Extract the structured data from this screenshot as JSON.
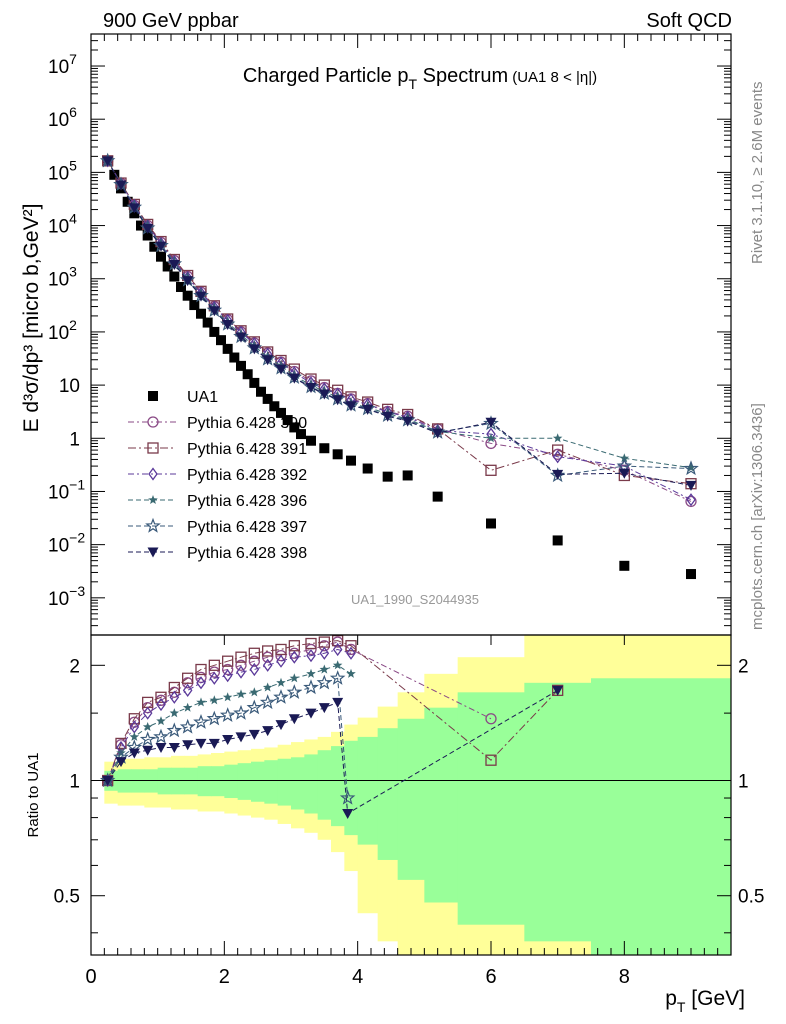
{
  "header": {
    "left": "900 GeV ppbar",
    "right": "Soft QCD"
  },
  "side_text": {
    "top": "Rivet 3.1.10, ≥ 2.6M events",
    "bottom": "mcplots.cern.ch [arXiv:1306.3436]"
  },
  "watermark": "UA1_1990_S2044935",
  "colors": {
    "ua1": "#000000",
    "p390": "#8a4a86",
    "p391": "#7a3a4a",
    "p392": "#5b3a9a",
    "p396": "#3a6a72",
    "p397": "#3a5a7a",
    "p398": "#1a1a55",
    "band_outer": "#ffff99",
    "band_inner": "#99ff99"
  },
  "chart_data": [
    {
      "type": "scatter",
      "title_main": "Charged Particle p",
      "title_sub": "T",
      "title_rest": " Spectrum",
      "title_note": "(UA1   8 < |η|)",
      "ylabel": "E d³σ/dp³ [micro b,GeV²]",
      "yscale": "log",
      "ylim": [
        0.0002,
        40000000
      ],
      "xlim": [
        0,
        9.6
      ],
      "yticks": [
        {
          "v": 10000000,
          "m": "10",
          "e": "7"
        },
        {
          "v": 1000000,
          "m": "10",
          "e": "6"
        },
        {
          "v": 100000,
          "m": "10",
          "e": "5"
        },
        {
          "v": 10000,
          "m": "10",
          "e": "4"
        },
        {
          "v": 1000,
          "m": "10",
          "e": "3"
        },
        {
          "v": 100,
          "m": "10",
          "e": "2"
        },
        {
          "v": 10,
          "m": "10",
          "e": ""
        },
        {
          "v": 1,
          "m": "1",
          "e": ""
        },
        {
          "v": 0.1,
          "m": "10",
          "e": "−1"
        },
        {
          "v": 0.01,
          "m": "10",
          "e": "−2"
        },
        {
          "v": 0.001,
          "m": "10",
          "e": "−3"
        }
      ],
      "legend": [
        {
          "key": "ua1",
          "label": "UA1",
          "marker": "square-filled",
          "dash": ""
        },
        {
          "key": "p390",
          "label": "Pythia 6.428 390",
          "marker": "circle",
          "dash": "6,3,2,3"
        },
        {
          "key": "p391",
          "label": "Pythia 6.428 391",
          "marker": "square-open",
          "dash": "8,3,2,3"
        },
        {
          "key": "p392",
          "label": "Pythia 6.428 392",
          "marker": "diamond",
          "dash": "6,3,2,3"
        },
        {
          "key": "p396",
          "label": "Pythia 6.428 396",
          "marker": "star-small",
          "dash": "5,3"
        },
        {
          "key": "p397",
          "label": "Pythia 6.428 397",
          "marker": "star-open",
          "dash": "5,3"
        },
        {
          "key": "p398",
          "label": "Pythia 6.428 398",
          "marker": "triangle-down",
          "dash": "5,3"
        }
      ],
      "series": [
        {
          "name": "UA1",
          "key": "ua1",
          "x": [
            0.25,
            0.35,
            0.45,
            0.55,
            0.65,
            0.75,
            0.85,
            0.95,
            1.05,
            1.15,
            1.25,
            1.35,
            1.45,
            1.55,
            1.65,
            1.75,
            1.85,
            1.95,
            2.05,
            2.15,
            2.25,
            2.35,
            2.45,
            2.55,
            2.65,
            2.75,
            2.85,
            2.95,
            3.05,
            3.15,
            3.3,
            3.5,
            3.7,
            3.9,
            4.15,
            4.45,
            4.75,
            5.2,
            6.0,
            7.0,
            8.0,
            9.0
          ],
          "y": [
            160000,
            90000,
            50000,
            28000,
            17000,
            10000,
            6500,
            4000,
            2600,
            1700,
            1100,
            700,
            480,
            320,
            220,
            150,
            100,
            70,
            48,
            33,
            23,
            16,
            11,
            7.5,
            5.5,
            4.0,
            3.0,
            2.2,
            1.6,
            1.2,
            0.9,
            0.65,
            0.5,
            0.38,
            0.27,
            0.19,
            0.2,
            0.08,
            0.025,
            0.012,
            0.004,
            0.0028
          ]
        },
        {
          "name": "Pythia 6.428 390",
          "key": "p390",
          "x": [
            0.25,
            0.45,
            0.65,
            0.85,
            1.05,
            1.25,
            1.45,
            1.65,
            1.85,
            2.05,
            2.25,
            2.45,
            2.65,
            2.85,
            3.05,
            3.3,
            3.5,
            3.7,
            3.9,
            4.15,
            4.45,
            4.75,
            5.2,
            6.0,
            7.0,
            8.0,
            9.0
          ],
          "y": [
            165000,
            62000,
            24000,
            10000,
            4800,
            2200,
            1100,
            560,
            300,
            170,
            100,
            62,
            40,
            27,
            18,
            12,
            9,
            7,
            5.5,
            4.5,
            3.2,
            2.6,
            1.5,
            0.8,
            0.5,
            0.25,
            0.065
          ]
        },
        {
          "name": "Pythia 6.428 391",
          "key": "p391",
          "x": [
            0.25,
            0.45,
            0.65,
            0.85,
            1.05,
            1.25,
            1.45,
            1.65,
            1.85,
            2.05,
            2.25,
            2.45,
            2.65,
            2.85,
            3.05,
            3.3,
            3.5,
            3.7,
            3.9,
            4.15,
            4.45,
            4.75,
            5.2,
            6.0,
            7.0,
            8.0,
            9.0
          ],
          "y": [
            165000,
            63000,
            25000,
            10500,
            5000,
            2300,
            1150,
            580,
            310,
            175,
            105,
            65,
            42,
            29,
            20,
            13,
            10,
            8,
            6,
            4.8,
            3.5,
            2.8,
            1.5,
            0.25,
            0.6,
            0.2,
            0.14
          ]
        },
        {
          "name": "Pythia 6.428 392",
          "key": "p392",
          "x": [
            0.25,
            0.45,
            0.65,
            0.85,
            1.05,
            1.25,
            1.45,
            1.65,
            1.85,
            2.05,
            2.25,
            2.45,
            2.65,
            2.85,
            3.05,
            3.3,
            3.5,
            3.7,
            3.9,
            4.15,
            4.45,
            4.75,
            5.2,
            6.0,
            7.0,
            8.0,
            9.0
          ],
          "y": [
            165000,
            61000,
            24000,
            9800,
            4600,
            2100,
            1050,
            540,
            290,
            165,
            98,
            60,
            38,
            26,
            17,
            11,
            8.5,
            6.8,
            5.3,
            4.3,
            3.1,
            2.5,
            1.4,
            1.2,
            0.45,
            0.3,
            0.07
          ]
        },
        {
          "name": "Pythia 6.428 396",
          "key": "p396",
          "x": [
            0.25,
            0.45,
            0.65,
            0.85,
            1.05,
            1.25,
            1.45,
            1.65,
            1.85,
            2.05,
            2.25,
            2.45,
            2.65,
            2.85,
            3.05,
            3.3,
            3.5,
            3.7,
            3.9,
            4.15,
            4.45,
            4.75,
            5.2,
            6.0,
            7.0,
            8.0,
            9.0
          ],
          "y": [
            165000,
            60000,
            23000,
            9400,
            4400,
            2000,
            1000,
            500,
            270,
            150,
            88,
            54,
            34,
            23,
            15,
            10,
            7.5,
            6,
            4.5,
            3.8,
            2.9,
            2.3,
            1.35,
            1.0,
            1.0,
            0.42,
            0.28
          ]
        },
        {
          "name": "Pythia 6.428 397",
          "key": "p397",
          "x": [
            0.25,
            0.45,
            0.65,
            0.85,
            1.05,
            1.25,
            1.45,
            1.65,
            1.85,
            2.05,
            2.25,
            2.45,
            2.65,
            2.85,
            3.05,
            3.3,
            3.5,
            3.7,
            3.9,
            4.15,
            4.45,
            4.75,
            5.2,
            6.0,
            7.0,
            8.0,
            9.0
          ],
          "y": [
            165000,
            59000,
            22000,
            9000,
            4200,
            1900,
            950,
            480,
            255,
            140,
            82,
            50,
            31,
            21,
            14,
            9.3,
            7,
            5.5,
            4.2,
            3.6,
            2.7,
            2.2,
            1.3,
            1.9,
            0.2,
            0.3,
            0.27
          ]
        },
        {
          "name": "Pythia 6.428 398",
          "key": "p398",
          "x": [
            0.25,
            0.45,
            0.65,
            0.85,
            1.05,
            1.25,
            1.45,
            1.65,
            1.85,
            2.05,
            2.25,
            2.45,
            2.65,
            2.85,
            3.05,
            3.3,
            3.5,
            3.7,
            3.9,
            4.15,
            4.45,
            4.75,
            5.2,
            6.0,
            7.0,
            8.0,
            9.0
          ],
          "y": [
            165000,
            58000,
            21500,
            8800,
            4100,
            1850,
            920,
            470,
            250,
            138,
            80,
            48,
            30,
            20,
            13.5,
            9,
            6.8,
            5.3,
            4.1,
            3.5,
            2.6,
            2.1,
            1.25,
            2.0,
            0.21,
            0.22,
            0.13
          ]
        }
      ]
    },
    {
      "type": "scatter",
      "ylabel": "Ratio to UA1",
      "xlabel_main": "p",
      "xlabel_sub": "T",
      "xlabel_rest": " [GeV]",
      "yscale": "log",
      "ylim": [
        0.35,
        2.4
      ],
      "xlim": [
        0,
        9.6
      ],
      "yticks": [
        {
          "v": 0.5,
          "t": "0.5"
        },
        {
          "v": 1,
          "t": "1"
        },
        {
          "v": 2,
          "t": "2"
        }
      ],
      "xticks": [
        {
          "v": 0,
          "t": "0"
        },
        {
          "v": 2,
          "t": "2"
        },
        {
          "v": 4,
          "t": "4"
        },
        {
          "v": 6,
          "t": "6"
        },
        {
          "v": 8,
          "t": "8"
        }
      ],
      "bands": {
        "edges": [
          0.2,
          0.4,
          0.6,
          0.8,
          1.0,
          1.2,
          1.4,
          1.6,
          1.8,
          2.0,
          2.2,
          2.4,
          2.6,
          2.8,
          3.0,
          3.2,
          3.4,
          3.6,
          3.8,
          4.0,
          4.3,
          4.6,
          5.0,
          5.5,
          6.5,
          7.5,
          9.6
        ],
        "outer_hi": [
          1.12,
          1.14,
          1.14,
          1.15,
          1.15,
          1.16,
          1.16,
          1.17,
          1.18,
          1.19,
          1.2,
          1.21,
          1.22,
          1.24,
          1.26,
          1.28,
          1.3,
          1.34,
          1.4,
          1.46,
          1.56,
          1.7,
          1.9,
          2.1,
          2.4,
          2.4
        ],
        "outer_lo": [
          0.87,
          0.86,
          0.86,
          0.85,
          0.85,
          0.84,
          0.84,
          0.83,
          0.83,
          0.82,
          0.81,
          0.8,
          0.79,
          0.77,
          0.75,
          0.73,
          0.7,
          0.65,
          0.58,
          0.45,
          0.38,
          0.35,
          0.35,
          0.35,
          0.35,
          0.35
        ],
        "inner_hi": [
          1.06,
          1.07,
          1.07,
          1.07,
          1.08,
          1.08,
          1.08,
          1.09,
          1.09,
          1.1,
          1.11,
          1.12,
          1.13,
          1.14,
          1.15,
          1.17,
          1.2,
          1.23,
          1.27,
          1.3,
          1.37,
          1.45,
          1.55,
          1.7,
          1.8,
          1.85
        ],
        "inner_lo": [
          0.94,
          0.93,
          0.93,
          0.93,
          0.92,
          0.92,
          0.92,
          0.91,
          0.91,
          0.9,
          0.89,
          0.88,
          0.87,
          0.86,
          0.84,
          0.82,
          0.79,
          0.76,
          0.72,
          0.68,
          0.62,
          0.55,
          0.48,
          0.42,
          0.38,
          0.35
        ]
      },
      "series": [
        {
          "name": "Pythia 6.428 390",
          "key": "p390",
          "x": [
            0.25,
            0.45,
            0.65,
            0.85,
            1.05,
            1.25,
            1.45,
            1.65,
            1.85,
            2.05,
            2.25,
            2.45,
            2.65,
            2.85,
            3.05,
            3.3,
            3.5,
            3.7,
            3.9,
            6.0
          ],
          "y": [
            1.0,
            1.24,
            1.42,
            1.55,
            1.62,
            1.7,
            1.8,
            1.86,
            1.92,
            1.95,
            2.0,
            2.05,
            2.1,
            2.12,
            2.15,
            2.2,
            2.25,
            2.3,
            2.2,
            1.45
          ]
        },
        {
          "name": "Pythia 6.428 391",
          "key": "p391",
          "x": [
            0.25,
            0.45,
            0.65,
            0.85,
            1.05,
            1.25,
            1.45,
            1.65,
            1.85,
            2.05,
            2.25,
            2.45,
            2.65,
            2.85,
            3.05,
            3.3,
            3.5,
            3.7,
            3.9,
            6.0,
            7.0
          ],
          "y": [
            1.0,
            1.25,
            1.45,
            1.6,
            1.65,
            1.75,
            1.85,
            1.95,
            2.0,
            2.05,
            2.1,
            2.15,
            2.18,
            2.2,
            2.25,
            2.28,
            2.3,
            2.32,
            2.25,
            1.13,
            1.72
          ]
        },
        {
          "name": "Pythia 6.428 392",
          "key": "p392",
          "x": [
            0.25,
            0.45,
            0.65,
            0.85,
            1.05,
            1.25,
            1.45,
            1.65,
            1.85,
            2.05,
            2.25,
            2.45,
            2.65,
            2.85,
            3.05,
            3.3,
            3.5,
            3.7,
            3.9
          ],
          "y": [
            1.0,
            1.22,
            1.38,
            1.5,
            1.58,
            1.65,
            1.72,
            1.8,
            1.85,
            1.88,
            1.92,
            1.95,
            2.0,
            2.05,
            2.1,
            2.12,
            2.15,
            2.2,
            2.15
          ]
        },
        {
          "name": "Pythia 6.428 396",
          "key": "p396",
          "x": [
            0.25,
            0.45,
            0.65,
            0.85,
            1.05,
            1.25,
            1.45,
            1.65,
            1.85,
            2.05,
            2.25,
            2.45,
            2.65,
            2.85,
            3.05,
            3.3,
            3.5,
            3.7,
            3.9
          ],
          "y": [
            1.0,
            1.18,
            1.3,
            1.38,
            1.43,
            1.5,
            1.55,
            1.6,
            1.62,
            1.65,
            1.68,
            1.7,
            1.75,
            1.8,
            1.85,
            1.9,
            1.95,
            2.0,
            1.9
          ]
        },
        {
          "name": "Pythia 6.428 397",
          "key": "p397",
          "x": [
            0.25,
            0.45,
            0.65,
            0.85,
            1.05,
            1.25,
            1.45,
            1.65,
            1.85,
            2.05,
            2.25,
            2.45,
            2.65,
            2.85,
            3.05,
            3.3,
            3.5,
            3.7,
            3.85
          ],
          "y": [
            1.0,
            1.15,
            1.22,
            1.28,
            1.3,
            1.35,
            1.38,
            1.42,
            1.45,
            1.48,
            1.5,
            1.55,
            1.6,
            1.65,
            1.7,
            1.75,
            1.8,
            1.85,
            0.9
          ]
        },
        {
          "name": "Pythia 6.428 398",
          "key": "p398",
          "x": [
            0.25,
            0.45,
            0.65,
            0.85,
            1.05,
            1.25,
            1.45,
            1.65,
            1.85,
            2.05,
            2.25,
            2.45,
            2.65,
            2.85,
            3.05,
            3.3,
            3.5,
            3.7,
            3.85,
            7.0
          ],
          "y": [
            1.0,
            1.12,
            1.18,
            1.2,
            1.22,
            1.22,
            1.24,
            1.25,
            1.25,
            1.28,
            1.3,
            1.32,
            1.35,
            1.4,
            1.45,
            1.5,
            1.55,
            1.6,
            0.82,
            1.72
          ]
        }
      ]
    }
  ]
}
